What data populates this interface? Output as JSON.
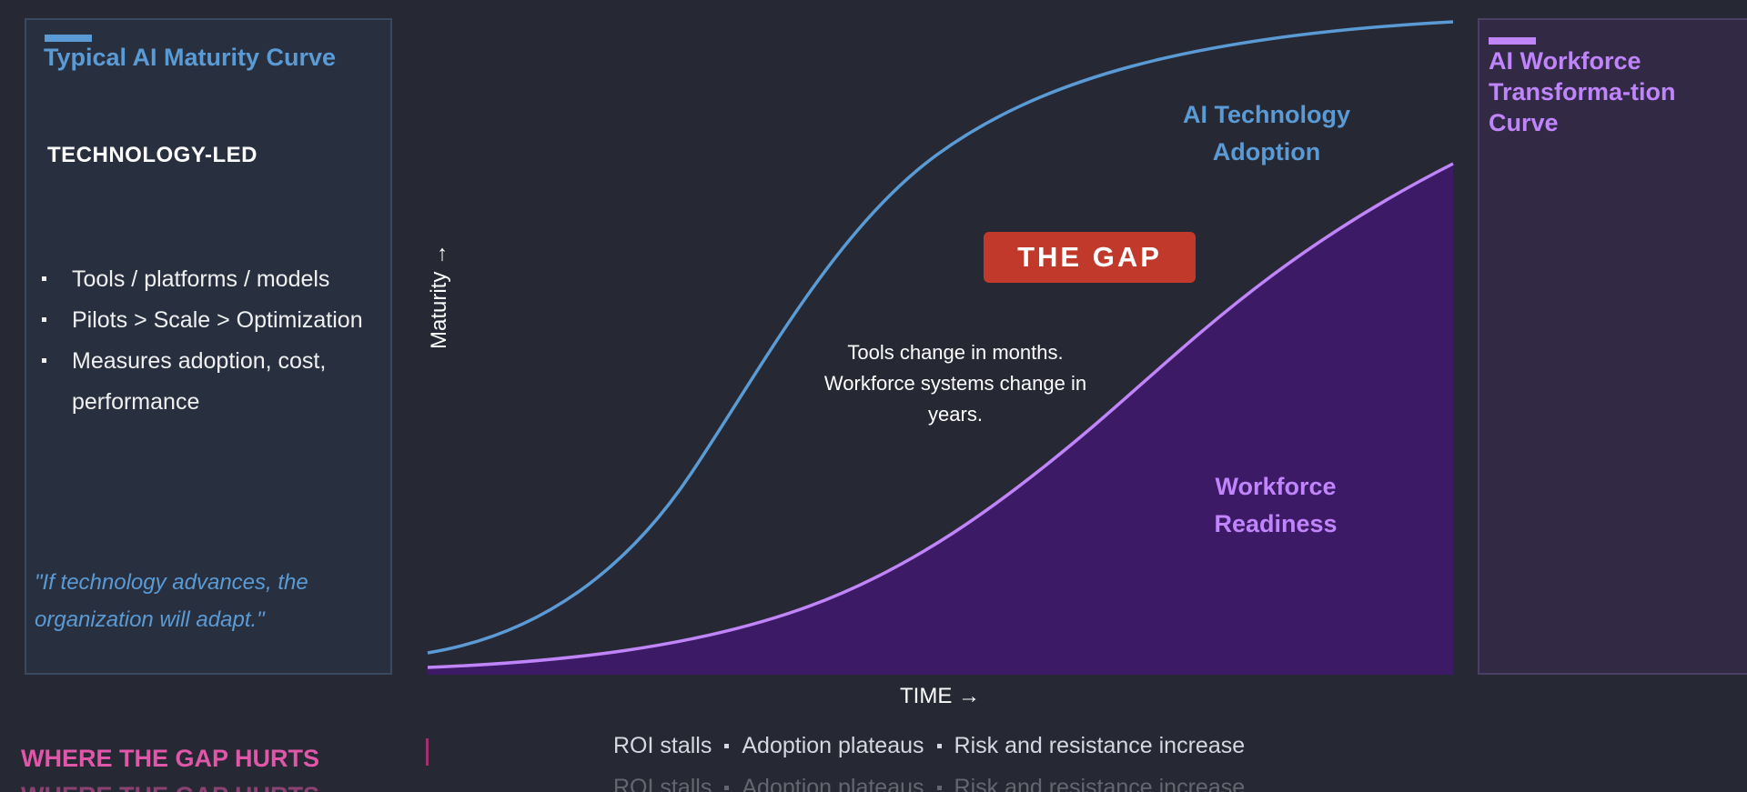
{
  "left_panel": {
    "title": "Typical AI Maturity Curve",
    "subtitle": "TECHNOLOGY-LED",
    "bullets": [
      "Tools / platforms / models",
      "Pilots > Scale > Optimization",
      "Measures adoption, cost, performance"
    ],
    "quote": "\"If technology advances, the organization will adapt.\""
  },
  "right_panel": {
    "title": "AI Workforce Transforma-tion Curve"
  },
  "diagram": {
    "y_axis_label": "Maturity →",
    "x_axis_label": "TIME →",
    "gap_badge": "THE GAP",
    "note": "Tools change in months. Workforce systems change in years.",
    "tech_curve_label": "AI Technology Adoption",
    "workforce_curve_label": "Workforce Readiness",
    "colors": {
      "tech": "#5b9bd5",
      "workforce": "#c084fc",
      "workforce_fill": "#3d1a66",
      "gap": "#c0392b"
    }
  },
  "footer": {
    "title": "WHERE THE GAP HURTS",
    "impacts": [
      "ROI stalls",
      "Adoption plateaus",
      "Risk and resistance increase"
    ]
  }
}
